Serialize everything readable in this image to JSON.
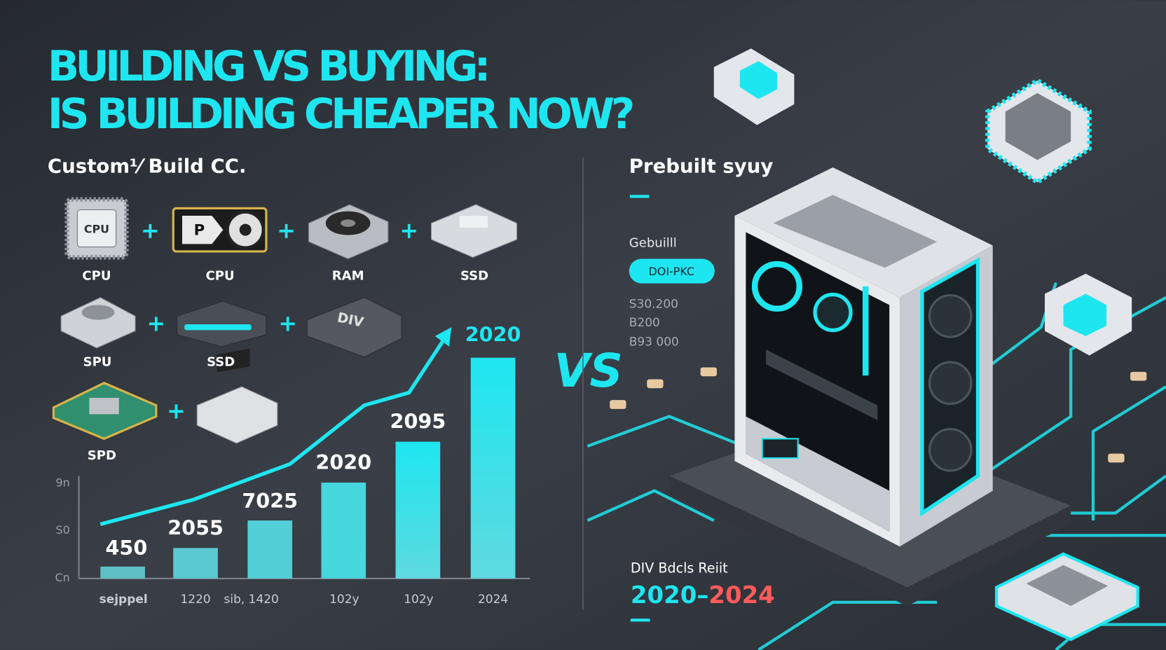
{
  "title": [
    "BUILDING VS BUYING:",
    "IS BUILDING CHEAPER NOW?"
  ],
  "custom": {
    "heading": "Custom⅟ Build CC.",
    "parts": [
      "CPU",
      "CPU",
      "RAM",
      "SSD",
      "SPU",
      "SSD",
      "SPD"
    ],
    "icon_texts": [
      "CPU",
      "P",
      "DIV"
    ]
  },
  "chart": {
    "y_labels": [
      "9n",
      "S0",
      "Cn"
    ],
    "bar_labels": [
      "450",
      "2055",
      "7025",
      "2020",
      "2095",
      "2020"
    ],
    "x_labels": [
      "sejppel",
      "1220",
      "sib, 1420",
      "102y",
      "102y",
      "2024"
    ]
  },
  "vs": "VS",
  "prebuilt": {
    "heading": "Prebuilt syuy",
    "subheading": "Gebuilll",
    "button": "DOI-PKC",
    "prices": [
      "S30.200",
      "B200",
      "B93 000"
    ]
  },
  "footer": {
    "label": "DIV Bdcls Reiit",
    "years_start": "2020–",
    "years_end": "2024"
  }
}
